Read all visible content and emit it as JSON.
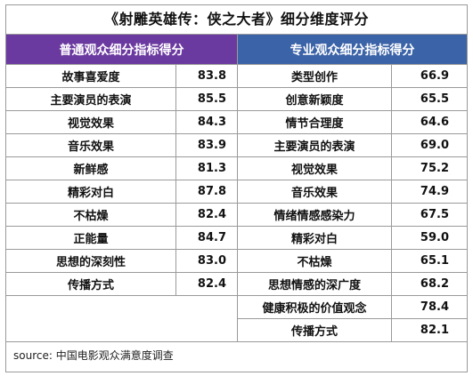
{
  "title": "《射雕英雄传：侠之大者》细分维度评分",
  "headers": {
    "left": "普通观众细分指标得分",
    "right": "专业观众细分指标得分",
    "left_color": "#6b3aa0",
    "right_color": "#3b63a8"
  },
  "left_rows": [
    {
      "label": "故事喜爱度",
      "value": "83.8"
    },
    {
      "label": "主要演员的表演",
      "value": "85.5"
    },
    {
      "label": "视觉效果",
      "value": "84.3"
    },
    {
      "label": "音乐效果",
      "value": "83.9"
    },
    {
      "label": "新鲜感",
      "value": "81.3"
    },
    {
      "label": "精彩对白",
      "value": "87.8"
    },
    {
      "label": "不枯燥",
      "value": "82.4"
    },
    {
      "label": "正能量",
      "value": "84.7"
    },
    {
      "label": "思想的深刻性",
      "value": "83.0"
    },
    {
      "label": "传播方式",
      "value": "82.4"
    }
  ],
  "right_rows": [
    {
      "label": "类型创作",
      "value": "66.9"
    },
    {
      "label": "创意新颖度",
      "value": "65.5"
    },
    {
      "label": "情节合理度",
      "value": "64.6"
    },
    {
      "label": "主要演员的表演",
      "value": "69.0"
    },
    {
      "label": "视觉效果",
      "value": "75.2"
    },
    {
      "label": "音乐效果",
      "value": "74.9"
    },
    {
      "label": "情绪情感感染力",
      "value": "67.5"
    },
    {
      "label": "精彩对白",
      "value": "59.0"
    },
    {
      "label": "不枯燥",
      "value": "65.1"
    },
    {
      "label": "思想情感的深广度",
      "value": "68.2"
    },
    {
      "label": "健康积极的价值观念",
      "value": "78.4"
    },
    {
      "label": "传播方式",
      "value": "82.1"
    }
  ],
  "source": "source: 中国电影观众满意度调查"
}
